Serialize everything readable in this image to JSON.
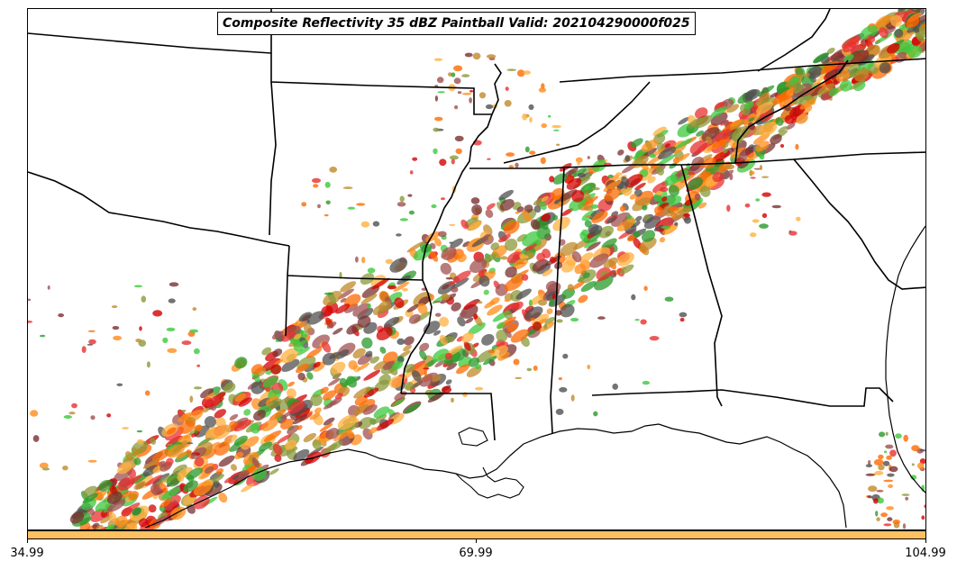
{
  "title": "Composite Reflectivity 35 dBZ Paintball Valid: 202104290000f025",
  "colorbar": {
    "color": "#ffc061",
    "ticks": [
      "34.99",
      "69.99",
      "104.99"
    ]
  },
  "paintball_colors": [
    "#d40000",
    "#e83030",
    "#ff6a00",
    "#ff8c1a",
    "#ffb040",
    "#3cc83c",
    "#2a9a2a",
    "#8a9a3a",
    "#a05050",
    "#7a3030",
    "#505050",
    "#c08a2a"
  ]
}
